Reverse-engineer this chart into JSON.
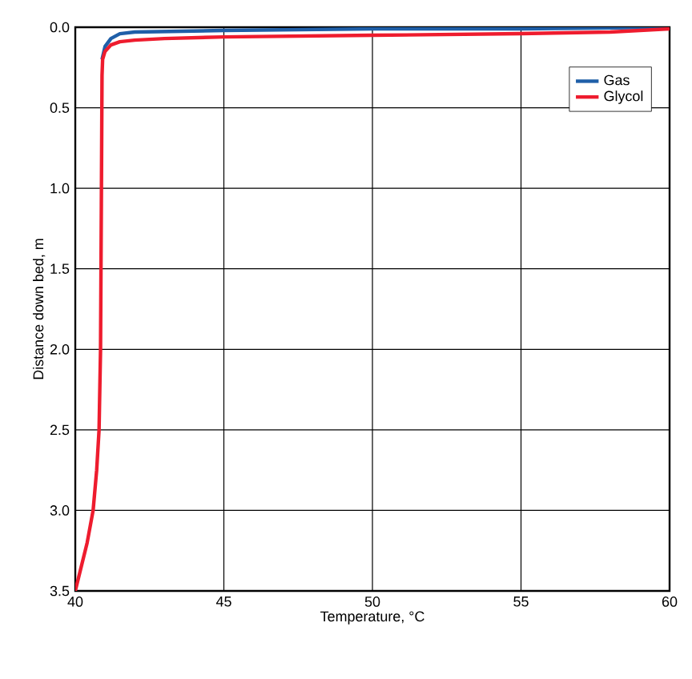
{
  "chart_data": {
    "type": "line",
    "xlabel": "Temperature, °C",
    "ylabel": "Distance down bed, m",
    "xlim": [
      40,
      60
    ],
    "ylim": [
      3.5,
      0
    ],
    "xticks": [
      40,
      45,
      50,
      55,
      60
    ],
    "yticks": [
      {
        "value": 0,
        "label": "0.0"
      },
      {
        "value": 0.5,
        "label": "0.5"
      },
      {
        "value": 1,
        "label": "1.0"
      },
      {
        "value": 1.5,
        "label": "1.5"
      },
      {
        "value": 2,
        "label": "2.0"
      },
      {
        "value": 2.5,
        "label": "2.5"
      },
      {
        "value": 3,
        "label": "3.0"
      },
      {
        "value": 3.5,
        "label": "3.5"
      }
    ],
    "grid": true,
    "legend": "top right",
    "marker": "none",
    "line_style": "solid",
    "series": [
      {
        "name": "Gas",
        "color": "#1f5fa8",
        "x": [
          40.9,
          41.0,
          41.2,
          41.5,
          42,
          45,
          50,
          55,
          60
        ],
        "values": [
          0.2,
          0.12,
          0.07,
          0.04,
          0.03,
          0.02,
          0.01,
          0.01,
          0.0
        ]
      },
      {
        "name": "Glycol",
        "color": "#ee1c2e",
        "x": [
          40.0,
          40.2,
          40.4,
          40.6,
          40.72,
          40.8,
          40.85,
          40.88,
          40.9,
          40.92,
          41.0,
          41.2,
          41.5,
          42,
          43,
          45,
          50,
          55,
          58,
          60
        ],
        "values": [
          3.5,
          3.35,
          3.2,
          3.0,
          2.75,
          2.5,
          2.0,
          1.0,
          0.3,
          0.2,
          0.15,
          0.11,
          0.09,
          0.08,
          0.07,
          0.06,
          0.05,
          0.04,
          0.03,
          0.01
        ]
      }
    ]
  }
}
